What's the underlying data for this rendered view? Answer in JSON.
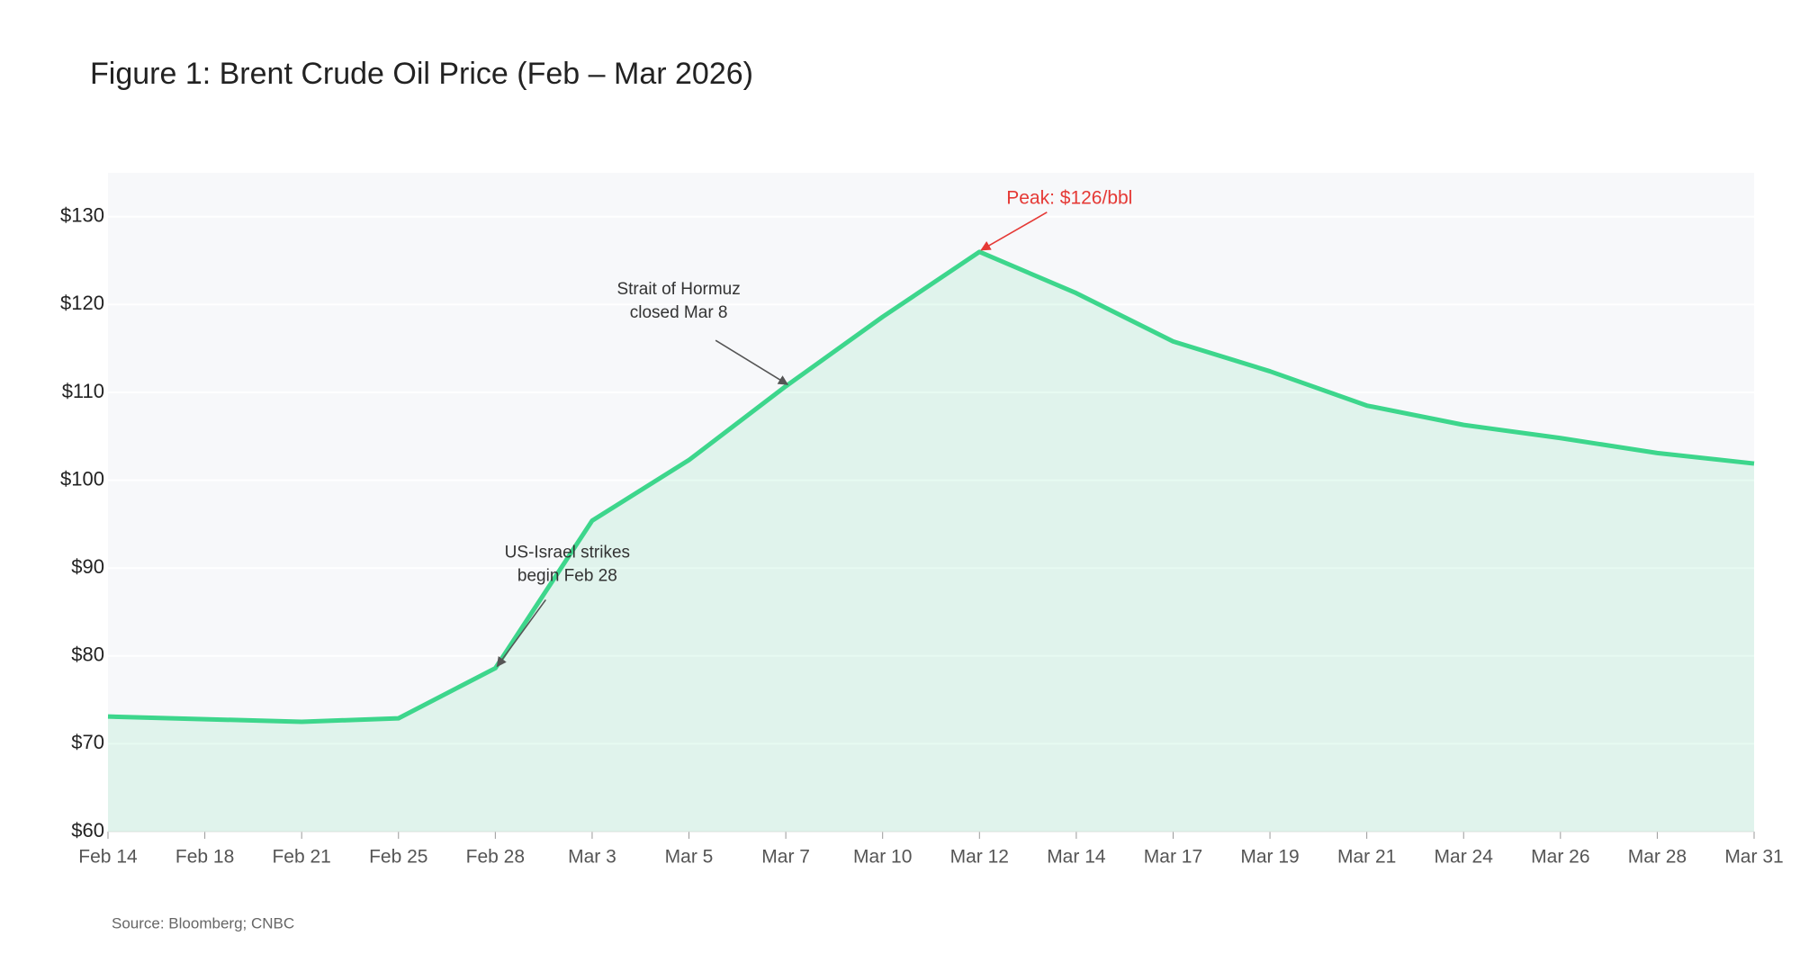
{
  "chart_data": {
    "type": "line",
    "title": "Figure 1: Brent Crude Oil Price (Feb – Mar 2026)",
    "source": "Source: Bloomberg; CNBC",
    "categories": [
      "Feb 14",
      "Feb 18",
      "Feb 21",
      "Feb 25",
      "Feb 28",
      "Mar 3",
      "Mar 5",
      "Mar 7",
      "Mar 10",
      "Mar 12",
      "Mar 14",
      "Mar 17",
      "Mar 19",
      "Mar 21",
      "Mar 24",
      "Mar 26",
      "Mar 28",
      "Mar 31"
    ],
    "series": [
      {
        "color": "#3dd68c",
        "values": [
          73.1,
          72.8,
          72.5,
          72.9,
          78.6,
          95.4,
          102.3,
          110.7,
          118.6,
          126,
          121.3,
          115.8,
          112.4,
          108.5,
          106.3,
          104.8,
          103.1,
          101.9
        ]
      }
    ],
    "ylim": [
      60,
      135
    ],
    "yticks": [
      {
        "value": 60,
        "label": "$60"
      },
      {
        "value": 70,
        "label": "$70"
      },
      {
        "value": 80,
        "label": "$80"
      },
      {
        "value": 90,
        "label": "$90"
      },
      {
        "value": 100,
        "label": "$100"
      },
      {
        "value": 110,
        "label": "$110"
      },
      {
        "value": 120,
        "label": "$120"
      },
      {
        "value": 130,
        "label": "$130"
      }
    ],
    "grid": true,
    "annotations": [
      {
        "lines": [
          "Peak: $126/bbl"
        ],
        "color": "#e53935"
      },
      {
        "lines": [
          "Strait of Hormuz",
          "closed Mar 8"
        ],
        "color": "#333333"
      },
      {
        "lines": [
          "US-Israel strikes",
          "begin Feb 28"
        ],
        "color": "#333333"
      }
    ]
  }
}
